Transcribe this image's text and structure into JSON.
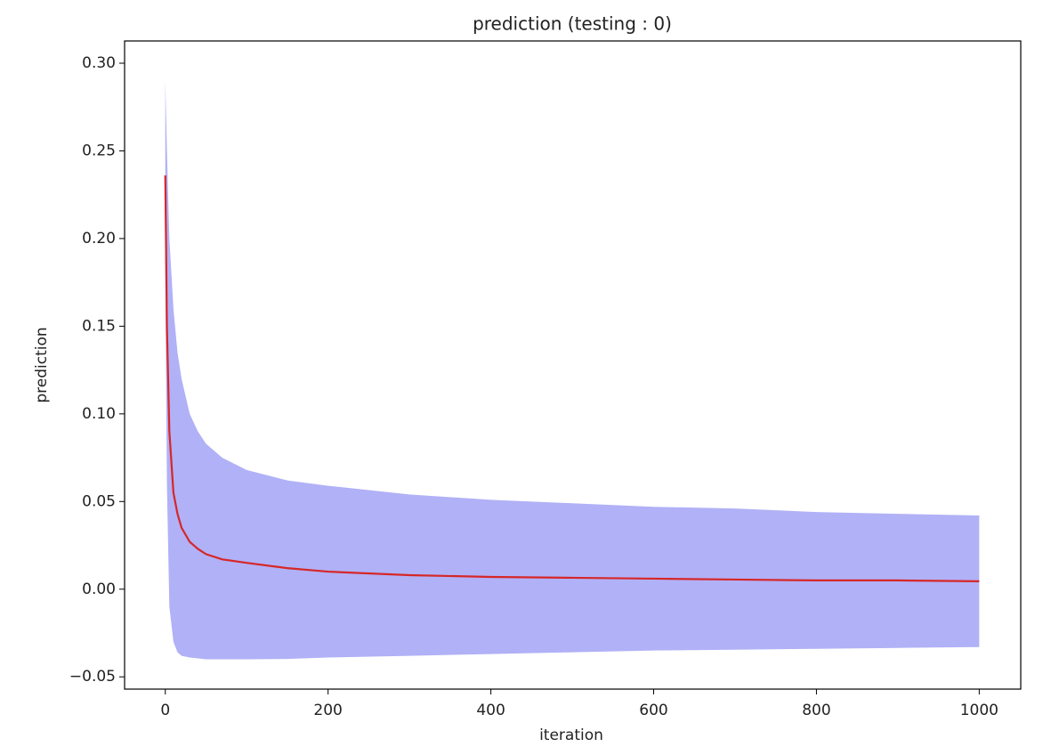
{
  "chart_data": {
    "type": "line",
    "title": "prediction (testing : 0)",
    "x_label": "iteration",
    "y_label": "prediction",
    "x": [
      0,
      2,
      5,
      10,
      15,
      20,
      30,
      40,
      50,
      70,
      100,
      150,
      200,
      300,
      400,
      500,
      600,
      700,
      800,
      900,
      1000
    ],
    "series": [
      {
        "color": "#d62728",
        "values": [
          0.236,
          0.15,
          0.09,
          0.055,
          0.043,
          0.035,
          0.027,
          0.023,
          0.02,
          0.017,
          0.015,
          0.012,
          0.01,
          0.008,
          0.007,
          0.0065,
          0.006,
          0.0055,
          0.005,
          0.005,
          0.0045
        ]
      }
    ],
    "band": {
      "color": "#b1b1f7",
      "upper": [
        0.29,
        0.25,
        0.2,
        0.16,
        0.135,
        0.12,
        0.1,
        0.09,
        0.083,
        0.075,
        0.068,
        0.062,
        0.059,
        0.054,
        0.051,
        0.049,
        0.047,
        0.046,
        0.044,
        0.043,
        0.042
      ],
      "lower": [
        0.18,
        0.06,
        -0.01,
        -0.03,
        -0.036,
        -0.038,
        -0.039,
        -0.0395,
        -0.04,
        -0.04,
        -0.04,
        -0.0398,
        -0.039,
        -0.038,
        -0.037,
        -0.036,
        -0.035,
        -0.0345,
        -0.034,
        -0.0335,
        -0.033
      ]
    },
    "xlim": [
      -50,
      1051
    ],
    "ylim": [
      -0.057,
      0.3127
    ],
    "xticks": [
      0,
      200,
      400,
      600,
      800,
      1000
    ],
    "yticks": [
      {
        "value": -0.05,
        "label": "−0.05"
      },
      {
        "value": 0,
        "label": "0.00"
      },
      0.05,
      {
        "value": 0.1,
        "label": "0.10"
      },
      0.15,
      {
        "value": 0.2,
        "label": "0.20"
      },
      0.25,
      {
        "value": 0.3,
        "label": "0.30"
      }
    ],
    "grid": false
  }
}
